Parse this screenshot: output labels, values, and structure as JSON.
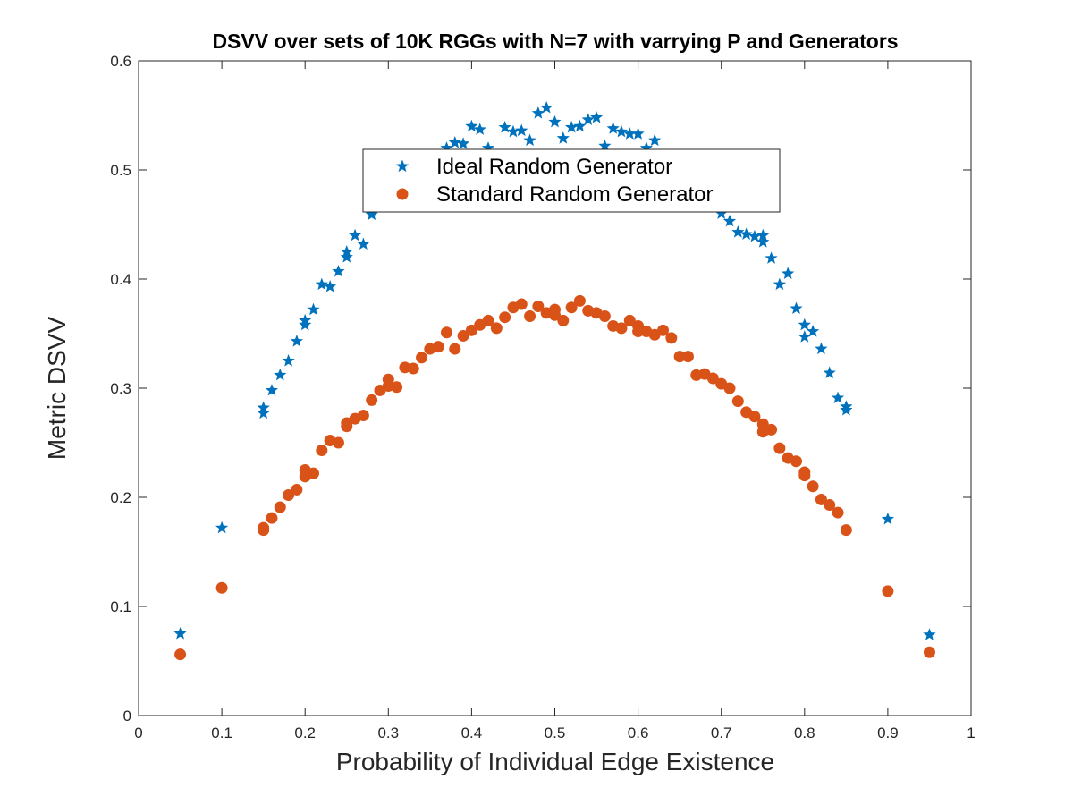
{
  "chart_data": {
    "type": "scatter",
    "title": "DSVV over sets of 10K RGGs with N=7 with varrying P and Generators",
    "xlabel": "Probability of Individual Edge Existence",
    "ylabel": "Metric DSVV",
    "xlim": [
      0,
      1
    ],
    "ylim": [
      0,
      0.6
    ],
    "xticks": [
      0,
      0.1,
      0.2,
      0.3,
      0.4,
      0.5,
      0.6,
      0.7,
      0.8,
      0.9,
      1
    ],
    "xtick_labels": [
      "0",
      "0.1",
      "0.2",
      "0.3",
      "0.4",
      "0.5",
      "0.6",
      "0.7",
      "0.8",
      "0.9",
      "1"
    ],
    "yticks": [
      0,
      0.1,
      0.2,
      0.3,
      0.4,
      0.5,
      0.6
    ],
    "ytick_labels": [
      "0",
      "0.1",
      "0.2",
      "0.3",
      "0.4",
      "0.5",
      "0.6"
    ],
    "grid": false,
    "legend_position": "top-center",
    "series": [
      {
        "name": "Ideal Random Generator",
        "marker": "star",
        "color": "#0072BD",
        "x": [
          0.05,
          0.1,
          0.15,
          0.15,
          0.16,
          0.17,
          0.18,
          0.19,
          0.2,
          0.2,
          0.21,
          0.22,
          0.23,
          0.24,
          0.25,
          0.25,
          0.26,
          0.27,
          0.28,
          0.37,
          0.38,
          0.39,
          0.4,
          0.41,
          0.42,
          0.44,
          0.45,
          0.46,
          0.47,
          0.48,
          0.49,
          0.5,
          0.51,
          0.52,
          0.53,
          0.54,
          0.55,
          0.56,
          0.57,
          0.58,
          0.59,
          0.6,
          0.61,
          0.62,
          0.7,
          0.71,
          0.72,
          0.73,
          0.74,
          0.75,
          0.75,
          0.76,
          0.77,
          0.78,
          0.79,
          0.8,
          0.8,
          0.81,
          0.82,
          0.83,
          0.84,
          0.85,
          0.85,
          0.9,
          0.95
        ],
        "y": [
          0.075,
          0.172,
          0.282,
          0.277,
          0.298,
          0.312,
          0.325,
          0.343,
          0.358,
          0.362,
          0.372,
          0.395,
          0.393,
          0.407,
          0.42,
          0.425,
          0.44,
          0.432,
          0.459,
          0.52,
          0.525,
          0.524,
          0.54,
          0.537,
          0.52,
          0.539,
          0.535,
          0.536,
          0.527,
          0.552,
          0.557,
          0.544,
          0.529,
          0.539,
          0.54,
          0.546,
          0.548,
          0.522,
          0.538,
          0.535,
          0.533,
          0.533,
          0.52,
          0.527,
          0.46,
          0.453,
          0.443,
          0.441,
          0.439,
          0.44,
          0.434,
          0.419,
          0.395,
          0.405,
          0.373,
          0.358,
          0.347,
          0.352,
          0.336,
          0.314,
          0.291,
          0.283,
          0.28,
          0.18,
          0.074
        ]
      },
      {
        "name": "Standard Random Generator",
        "marker": "circle",
        "color": "#D95319",
        "x": [
          0.05,
          0.1,
          0.15,
          0.15,
          0.16,
          0.17,
          0.18,
          0.19,
          0.2,
          0.2,
          0.21,
          0.22,
          0.23,
          0.24,
          0.25,
          0.25,
          0.26,
          0.27,
          0.28,
          0.29,
          0.3,
          0.3,
          0.31,
          0.32,
          0.33,
          0.34,
          0.35,
          0.36,
          0.37,
          0.38,
          0.39,
          0.4,
          0.41,
          0.42,
          0.43,
          0.44,
          0.45,
          0.46,
          0.47,
          0.48,
          0.49,
          0.5,
          0.5,
          0.51,
          0.52,
          0.53,
          0.54,
          0.55,
          0.56,
          0.57,
          0.58,
          0.59,
          0.6,
          0.6,
          0.61,
          0.62,
          0.63,
          0.64,
          0.65,
          0.66,
          0.67,
          0.68,
          0.69,
          0.7,
          0.71,
          0.72,
          0.73,
          0.74,
          0.75,
          0.75,
          0.76,
          0.77,
          0.78,
          0.79,
          0.8,
          0.8,
          0.81,
          0.82,
          0.83,
          0.84,
          0.85,
          0.9,
          0.95
        ],
        "y": [
          0.056,
          0.117,
          0.17,
          0.172,
          0.181,
          0.191,
          0.202,
          0.207,
          0.219,
          0.225,
          0.222,
          0.243,
          0.252,
          0.25,
          0.265,
          0.268,
          0.272,
          0.275,
          0.289,
          0.298,
          0.302,
          0.308,
          0.301,
          0.319,
          0.318,
          0.328,
          0.336,
          0.338,
          0.351,
          0.336,
          0.348,
          0.353,
          0.358,
          0.362,
          0.355,
          0.365,
          0.374,
          0.377,
          0.366,
          0.375,
          0.369,
          0.372,
          0.367,
          0.362,
          0.374,
          0.38,
          0.371,
          0.369,
          0.366,
          0.357,
          0.355,
          0.362,
          0.357,
          0.352,
          0.352,
          0.349,
          0.353,
          0.346,
          0.329,
          0.329,
          0.312,
          0.313,
          0.309,
          0.304,
          0.3,
          0.288,
          0.278,
          0.274,
          0.267,
          0.26,
          0.262,
          0.245,
          0.236,
          0.233,
          0.223,
          0.22,
          0.21,
          0.198,
          0.193,
          0.186,
          0.17,
          0.114,
          0.058
        ]
      }
    ]
  }
}
